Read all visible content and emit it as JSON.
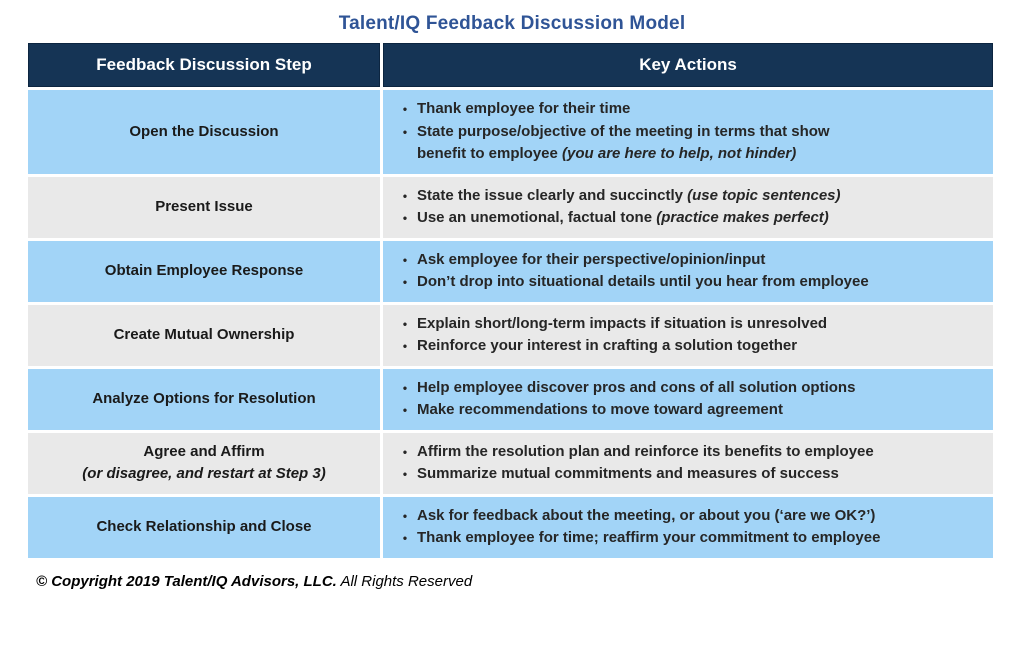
{
  "title": "Talent/IQ Feedback Discussion Model",
  "colors": {
    "header_bg": "#153455",
    "header_border": "#0c2540",
    "header_text": "#ffffff",
    "row_blue": "#a2d4f7",
    "row_gray": "#e9e9e9",
    "title_color": "#2f5496",
    "body_text": "#262626"
  },
  "bullet_glyph": "•",
  "table": {
    "headers": [
      "Feedback Discussion Step",
      "Key Actions"
    ],
    "rows": [
      {
        "step": "Open the Discussion",
        "step_note": "",
        "actions": [
          [
            {
              "t": "Thank employee for their time"
            }
          ],
          [
            {
              "t": "State purpose/objective of the meeting in terms that show"
            },
            {
              "br": true
            },
            {
              "t": "benefit to employee "
            },
            {
              "t": "(you are here to help, not hinder)",
              "i": true
            }
          ]
        ]
      },
      {
        "step": "Present Issue",
        "step_note": "",
        "actions": [
          [
            {
              "t": "State the issue clearly and succinctly "
            },
            {
              "t": "(use topic sentences)",
              "i": true
            }
          ],
          [
            {
              "t": "Use an unemotional, factual tone "
            },
            {
              "t": "(practice makes perfect)",
              "i": true
            }
          ]
        ]
      },
      {
        "step": "Obtain Employee Response",
        "step_note": "",
        "actions": [
          [
            {
              "t": "Ask employee for their perspective/opinion/input"
            }
          ],
          [
            {
              "t": "Don’t drop into situational details until you hear from employee"
            }
          ]
        ]
      },
      {
        "step": "Create Mutual Ownership",
        "step_note": "",
        "actions": [
          [
            {
              "t": "Explain short/long-term impacts if situation is unresolved"
            }
          ],
          [
            {
              "t": "Reinforce your interest in crafting a solution together"
            }
          ]
        ]
      },
      {
        "step": "Analyze Options for Resolution",
        "step_note": "",
        "actions": [
          [
            {
              "t": "Help employee discover pros and cons of all solution options"
            }
          ],
          [
            {
              "t": "Make recommendations to move toward agreement"
            }
          ]
        ]
      },
      {
        "step": "Agree and Affirm",
        "step_note": "(or disagree, and restart at Step 3)",
        "actions": [
          [
            {
              "t": "Affirm the resolution plan and reinforce its benefits to employee"
            }
          ],
          [
            {
              "t": "Summarize mutual commitments and measures of success"
            }
          ]
        ]
      },
      {
        "step": "Check Relationship and Close",
        "step_note": "",
        "actions": [
          [
            {
              "t": "Ask for feedback about the meeting, or about you (‘are we OK?’)"
            }
          ],
          [
            {
              "t": "Thank employee for time; reaffirm your commitment to employee"
            }
          ]
        ]
      }
    ]
  },
  "footer": {
    "bold": "© Copyright 2019 Talent/IQ Advisors, LLC.",
    "regular": "All Rights Reserved"
  }
}
